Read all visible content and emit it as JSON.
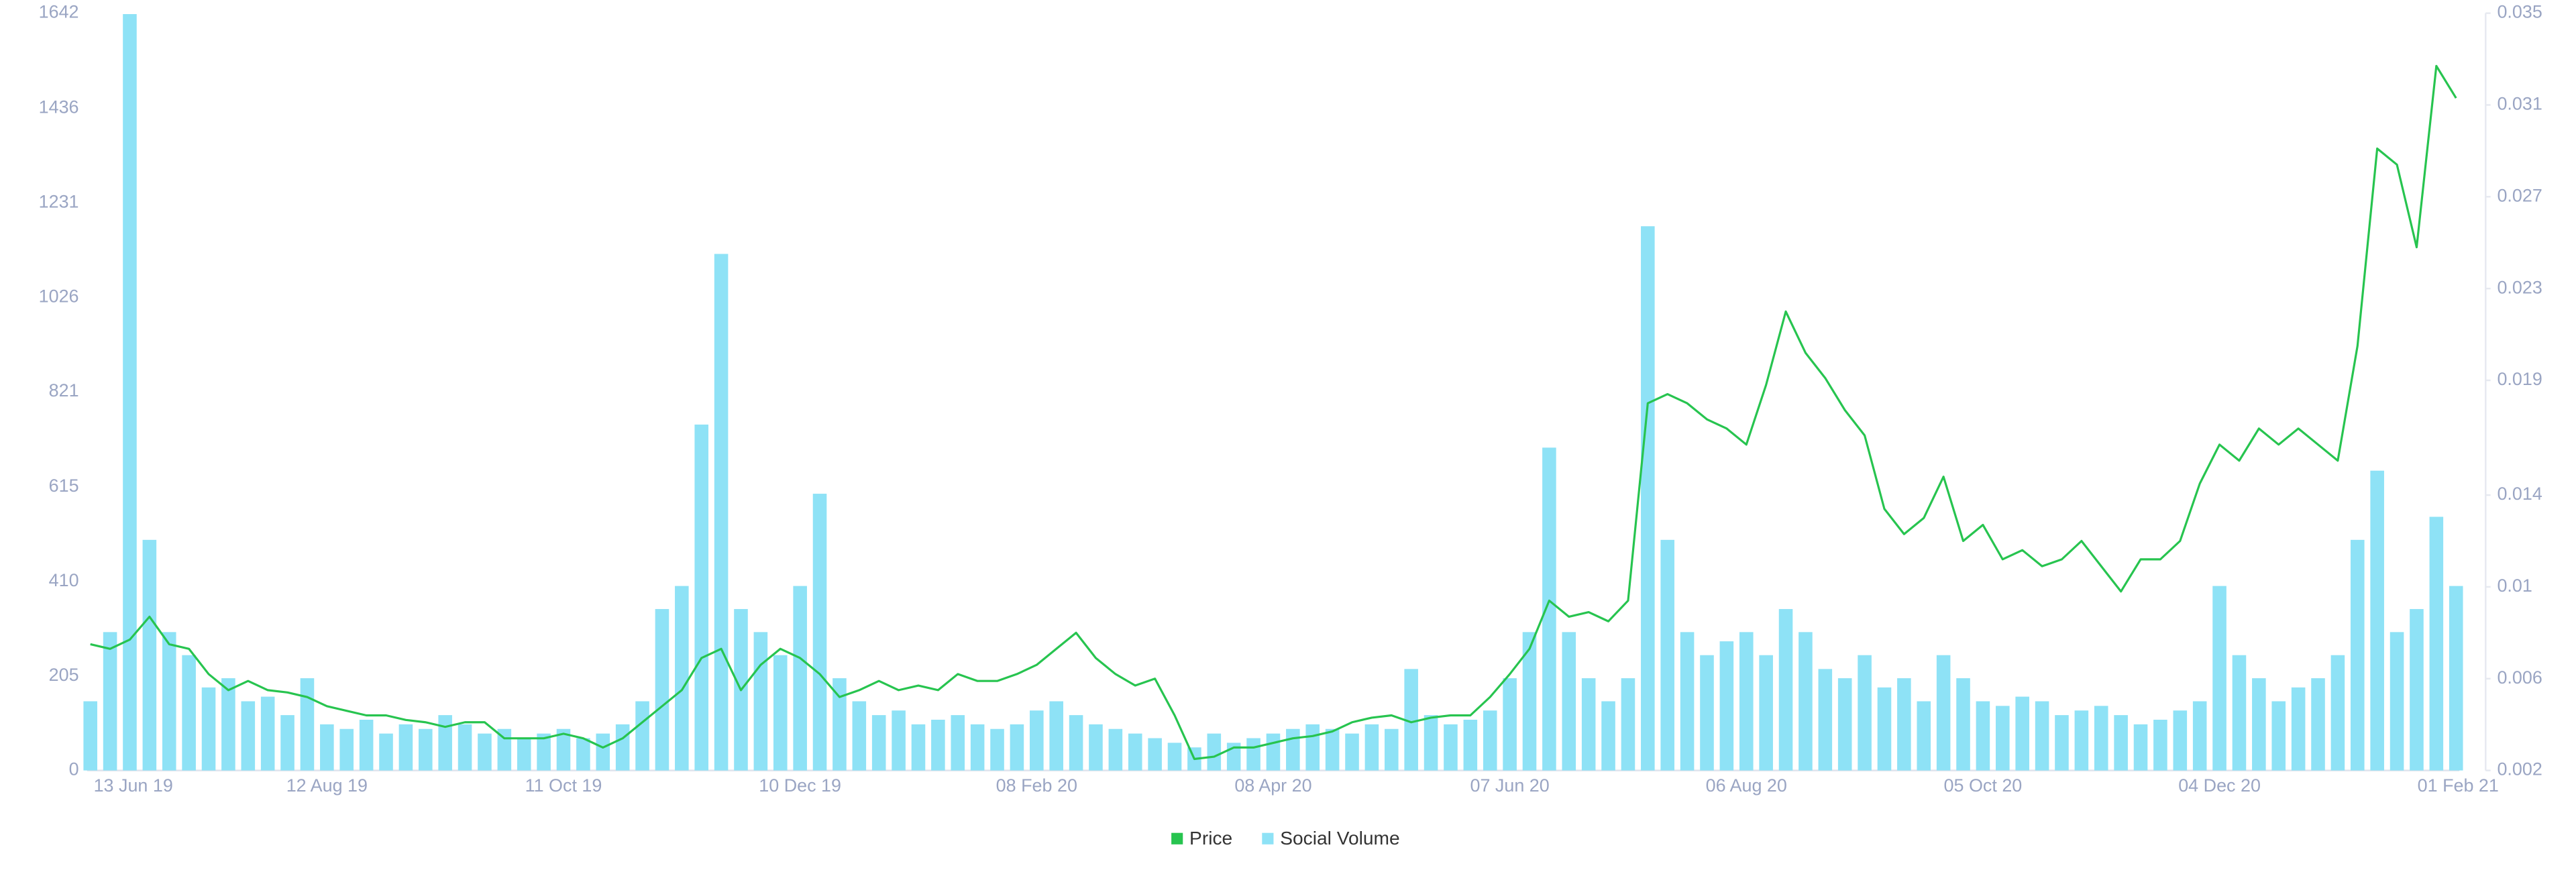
{
  "chart_data": {
    "type": "combo",
    "categories": [
      "13 Jun 19",
      null,
      null,
      null,
      null,
      null,
      null,
      null,
      null,
      null,
      null,
      null,
      "12 Aug 19",
      null,
      null,
      null,
      null,
      null,
      null,
      null,
      null,
      null,
      null,
      null,
      "11 Oct 19",
      null,
      null,
      null,
      null,
      null,
      null,
      null,
      null,
      null,
      null,
      null,
      "10 Dec 19",
      null,
      null,
      null,
      null,
      null,
      null,
      null,
      null,
      null,
      null,
      null,
      "08 Feb 20",
      null,
      null,
      null,
      null,
      null,
      null,
      null,
      null,
      null,
      null,
      null,
      "08 Apr 20",
      null,
      null,
      null,
      null,
      null,
      null,
      null,
      null,
      null,
      null,
      null,
      "07 Jun 20",
      null,
      null,
      null,
      null,
      null,
      null,
      null,
      null,
      null,
      null,
      null,
      "06 Aug 20",
      null,
      null,
      null,
      null,
      null,
      null,
      null,
      null,
      null,
      null,
      null,
      "05 Oct 20",
      null,
      null,
      null,
      null,
      null,
      null,
      null,
      null,
      null,
      null,
      null,
      "04 Dec 20",
      null,
      null,
      null,
      null,
      null,
      null,
      null,
      null,
      null,
      null,
      null,
      "01 Feb 21"
    ],
    "series": [
      {
        "name": "Social Volume",
        "type": "bar",
        "color": "#8ee2f6",
        "axis": "y",
        "values": [
          150,
          300,
          1640,
          500,
          300,
          250,
          180,
          200,
          150,
          160,
          120,
          200,
          100,
          90,
          110,
          80,
          100,
          90,
          120,
          100,
          80,
          90,
          70,
          80,
          90,
          70,
          80,
          100,
          150,
          350,
          400,
          750,
          1120,
          350,
          300,
          250,
          400,
          600,
          200,
          150,
          120,
          130,
          100,
          110,
          120,
          100,
          90,
          100,
          130,
          150,
          120,
          100,
          90,
          80,
          70,
          60,
          50,
          80,
          60,
          70,
          80,
          90,
          100,
          90,
          80,
          100,
          90,
          220,
          120,
          100,
          110,
          130,
          200,
          300,
          700,
          300,
          200,
          150,
          200,
          1180,
          500,
          300,
          250,
          280,
          300,
          250,
          350,
          300,
          220,
          200,
          250,
          180,
          200,
          150,
          250,
          200,
          150,
          140,
          160,
          150,
          120,
          130,
          140,
          120,
          100,
          110,
          130,
          150,
          400,
          250,
          200,
          150,
          180,
          200,
          250,
          500,
          650,
          300,
          350,
          550,
          400
        ]
      },
      {
        "name": "Price",
        "type": "line",
        "color": "#27c44f",
        "axis": "y2",
        "values": [
          0.0075,
          0.0073,
          0.0077,
          0.0087,
          0.0075,
          0.0073,
          0.0062,
          0.0055,
          0.0059,
          0.0055,
          0.0054,
          0.0052,
          0.0048,
          0.0046,
          0.0044,
          0.0044,
          0.0042,
          0.0041,
          0.0039,
          0.0041,
          0.0041,
          0.0034,
          0.0034,
          0.0034,
          0.0036,
          0.0034,
          0.003,
          0.0034,
          0.0041,
          0.0048,
          0.0055,
          0.0069,
          0.0073,
          0.0055,
          0.0066,
          0.0073,
          0.0069,
          0.0062,
          0.0052,
          0.0055,
          0.0059,
          0.0055,
          0.0057,
          0.0055,
          0.0062,
          0.0059,
          0.0059,
          0.0062,
          0.0066,
          0.0073,
          0.008,
          0.0069,
          0.0062,
          0.0057,
          0.006,
          0.0044,
          0.0025,
          0.0026,
          0.003,
          0.003,
          0.0032,
          0.0034,
          0.0035,
          0.0037,
          0.0041,
          0.0043,
          0.0044,
          0.0041,
          0.0043,
          0.0044,
          0.0044,
          0.0052,
          0.0062,
          0.0073,
          0.0094,
          0.0087,
          0.0089,
          0.0085,
          0.0094,
          0.018,
          0.0184,
          0.018,
          0.0173,
          0.0169,
          0.0162,
          0.0188,
          0.022,
          0.0202,
          0.0191,
          0.0177,
          0.0166,
          0.0134,
          0.0123,
          0.013,
          0.0148,
          0.012,
          0.0127,
          0.0112,
          0.0116,
          0.0109,
          0.0112,
          0.012,
          0.0109,
          0.0098,
          0.0112,
          0.0112,
          0.012,
          0.0145,
          0.0162,
          0.0155,
          0.0169,
          0.0162,
          0.0169,
          0.0162,
          0.0155,
          0.0205,
          0.0291,
          0.0284,
          0.0248,
          0.0327,
          0.0313
        ]
      }
    ],
    "ylim": [
      0,
      1642
    ],
    "yticks": [
      0,
      205,
      410,
      615,
      821,
      1026,
      1231,
      1436,
      1642
    ],
    "y2lim": [
      0.002,
      0.035
    ],
    "y2ticks": [
      0.002,
      0.006,
      0.01,
      0.014,
      0.019,
      0.023,
      0.027,
      0.031,
      0.035
    ],
    "legend_order": [
      "Price",
      "Social Volume"
    ]
  }
}
